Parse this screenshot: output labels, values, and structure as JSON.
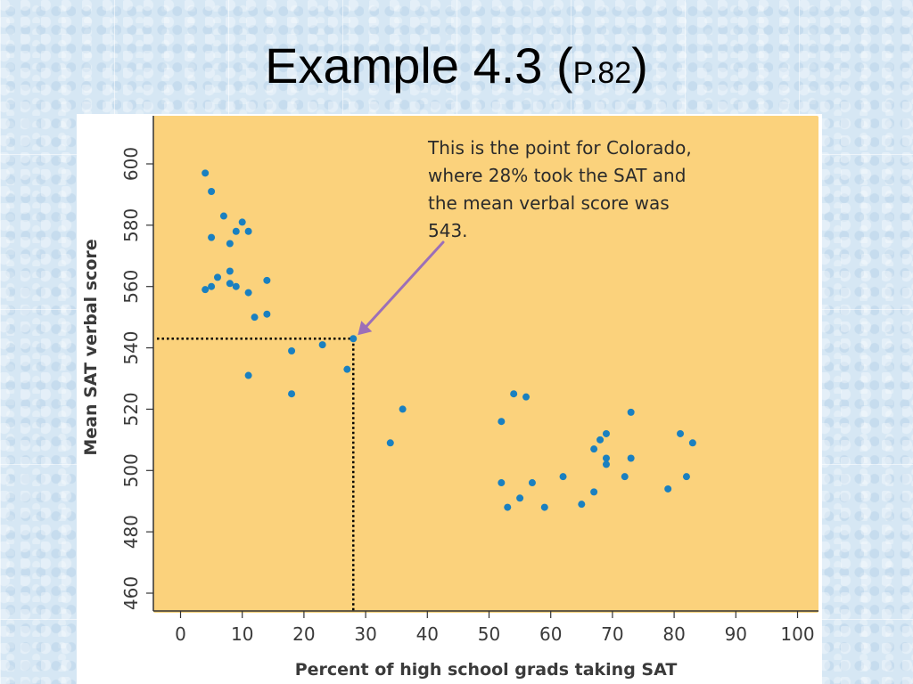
{
  "title": {
    "main": "Example 4.3 (",
    "page_ref": "P.82",
    "close": ")"
  },
  "colors": {
    "plot_background": "#fbd27c",
    "point": "#1a80c0",
    "arrow": "#9c6fb8",
    "guide_line": "#000000"
  },
  "chart_data": {
    "type": "scatter",
    "title": "",
    "xlabel": "Percent of high school grads taking SAT",
    "ylabel": "Mean SAT verbal score",
    "xlim": [
      0,
      100
    ],
    "ylim": [
      460,
      600
    ],
    "xticks": [
      "0",
      "10",
      "20",
      "30",
      "40",
      "50",
      "60",
      "70",
      "80",
      "90",
      "100"
    ],
    "yticks": [
      "460",
      "480",
      "500",
      "520",
      "540",
      "560",
      "580",
      "600"
    ],
    "grid": false,
    "points": [
      {
        "x": 4,
        "y": 597
      },
      {
        "x": 5,
        "y": 591
      },
      {
        "x": 7,
        "y": 583
      },
      {
        "x": 10,
        "y": 581
      },
      {
        "x": 5,
        "y": 576
      },
      {
        "x": 8,
        "y": 574
      },
      {
        "x": 9,
        "y": 578
      },
      {
        "x": 11,
        "y": 578
      },
      {
        "x": 4,
        "y": 559
      },
      {
        "x": 5,
        "y": 560
      },
      {
        "x": 6,
        "y": 563
      },
      {
        "x": 8,
        "y": 565
      },
      {
        "x": 8,
        "y": 561
      },
      {
        "x": 9,
        "y": 560
      },
      {
        "x": 11,
        "y": 558
      },
      {
        "x": 14,
        "y": 562
      },
      {
        "x": 12,
        "y": 550
      },
      {
        "x": 14,
        "y": 551
      },
      {
        "x": 11,
        "y": 531
      },
      {
        "x": 18,
        "y": 539
      },
      {
        "x": 18,
        "y": 525
      },
      {
        "x": 23,
        "y": 541
      },
      {
        "x": 27,
        "y": 533
      },
      {
        "x": 28,
        "y": 543
      },
      {
        "x": 34,
        "y": 509
      },
      {
        "x": 36,
        "y": 520
      },
      {
        "x": 52,
        "y": 516
      },
      {
        "x": 54,
        "y": 525
      },
      {
        "x": 56,
        "y": 524
      },
      {
        "x": 52,
        "y": 496
      },
      {
        "x": 53,
        "y": 488
      },
      {
        "x": 55,
        "y": 491
      },
      {
        "x": 57,
        "y": 496
      },
      {
        "x": 59,
        "y": 488
      },
      {
        "x": 62,
        "y": 498
      },
      {
        "x": 65,
        "y": 489
      },
      {
        "x": 67,
        "y": 493
      },
      {
        "x": 67,
        "y": 507
      },
      {
        "x": 68,
        "y": 510
      },
      {
        "x": 69,
        "y": 512
      },
      {
        "x": 69,
        "y": 504
      },
      {
        "x": 69,
        "y": 502
      },
      {
        "x": 72,
        "y": 498
      },
      {
        "x": 73,
        "y": 519
      },
      {
        "x": 73,
        "y": 504
      },
      {
        "x": 79,
        "y": 494
      },
      {
        "x": 81,
        "y": 512
      },
      {
        "x": 82,
        "y": 498
      },
      {
        "x": 83,
        "y": 509
      }
    ],
    "highlight": {
      "x": 28,
      "y": 543
    },
    "annotation": {
      "lines": [
        "This is the point for Colorado,",
        "where 28% took the SAT and",
        "the mean verbal score was",
        "543."
      ]
    }
  }
}
